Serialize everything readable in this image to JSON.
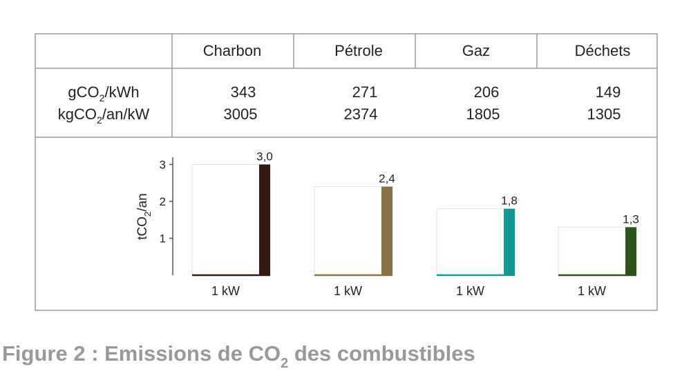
{
  "table": {
    "columns": [
      "Charbon",
      "Pétrole",
      "Gaz",
      "Déchets"
    ],
    "rows": [
      {
        "label_pre": "gCO",
        "label_sub": "2",
        "label_post": "/kWh",
        "values": [
          "343",
          "271",
          "206",
          "149"
        ]
      },
      {
        "label_pre": "kgCO",
        "label_sub": "2",
        "label_post": "/an/kW",
        "values": [
          "3005",
          "2374",
          "1805",
          "1305"
        ]
      }
    ]
  },
  "chart_data": {
    "type": "bar",
    "categories": [
      "Charbon",
      "Pétrole",
      "Gaz",
      "Déchets"
    ],
    "values": [
      3.0,
      2.4,
      1.8,
      1.3
    ],
    "data_labels": [
      "3,0",
      "2,4",
      "1,8",
      "1,3"
    ],
    "x_labels": [
      "1 kW",
      "1 kW",
      "1 kW",
      "1 kW"
    ],
    "ylabel_pre": "tCO",
    "ylabel_sub": "2",
    "ylabel_post": "/an",
    "yticks": [
      "1",
      "2",
      "3"
    ],
    "ylim": [
      0,
      3.1
    ],
    "grid": false,
    "colors": [
      "#33190f",
      "#8a7444",
      "#0f9a94",
      "#2b5419"
    ]
  },
  "caption": {
    "pre": "Figure 2 : Emissions de CO",
    "sub": "2",
    "post": " des combustibles"
  }
}
